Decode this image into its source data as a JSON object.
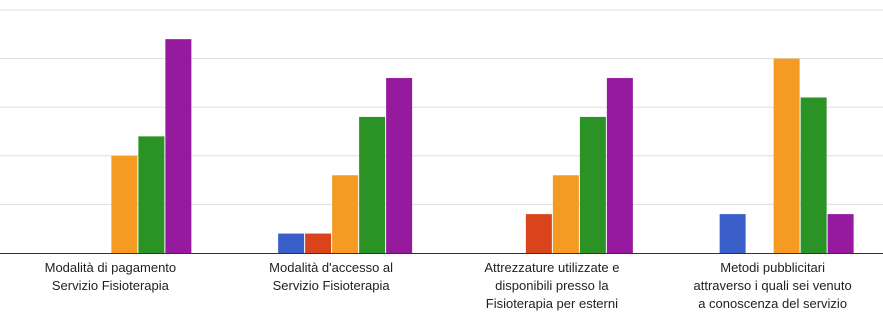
{
  "chart_data": {
    "type": "bar",
    "categories": [
      {
        "lines": [
          "Modalità di pagamento",
          "Servizio Fisioterapia"
        ]
      },
      {
        "lines": [
          "Modalità d'accesso al",
          "Servizio Fisioterapia"
        ]
      },
      {
        "lines": [
          "Attrezzature utilizzate e",
          "disponibili presso la",
          "Fisioterapia per esterni"
        ]
      },
      {
        "lines": [
          "Metodi pubblicitari",
          "attraverso i quali sei venuto",
          "a conoscenza del servizio"
        ]
      }
    ],
    "series": [
      {
        "color": "#3b5fc9",
        "values": [
          0,
          1,
          0,
          2
        ]
      },
      {
        "color": "#d9441c",
        "values": [
          0,
          1,
          2,
          0
        ]
      },
      {
        "color": "#f59a23",
        "values": [
          5,
          4,
          4,
          10
        ]
      },
      {
        "color": "#2b9326",
        "values": [
          6,
          7,
          7,
          8
        ]
      },
      {
        "color": "#951a9e",
        "values": [
          11,
          9,
          9,
          2
        ]
      }
    ],
    "ylim": [
      0,
      12.5
    ],
    "gridlines": [
      2.5,
      5,
      7.5,
      10,
      12.5
    ],
    "grid": true,
    "colors": {
      "grid": "#dddddd",
      "axis": "#333333"
    }
  }
}
